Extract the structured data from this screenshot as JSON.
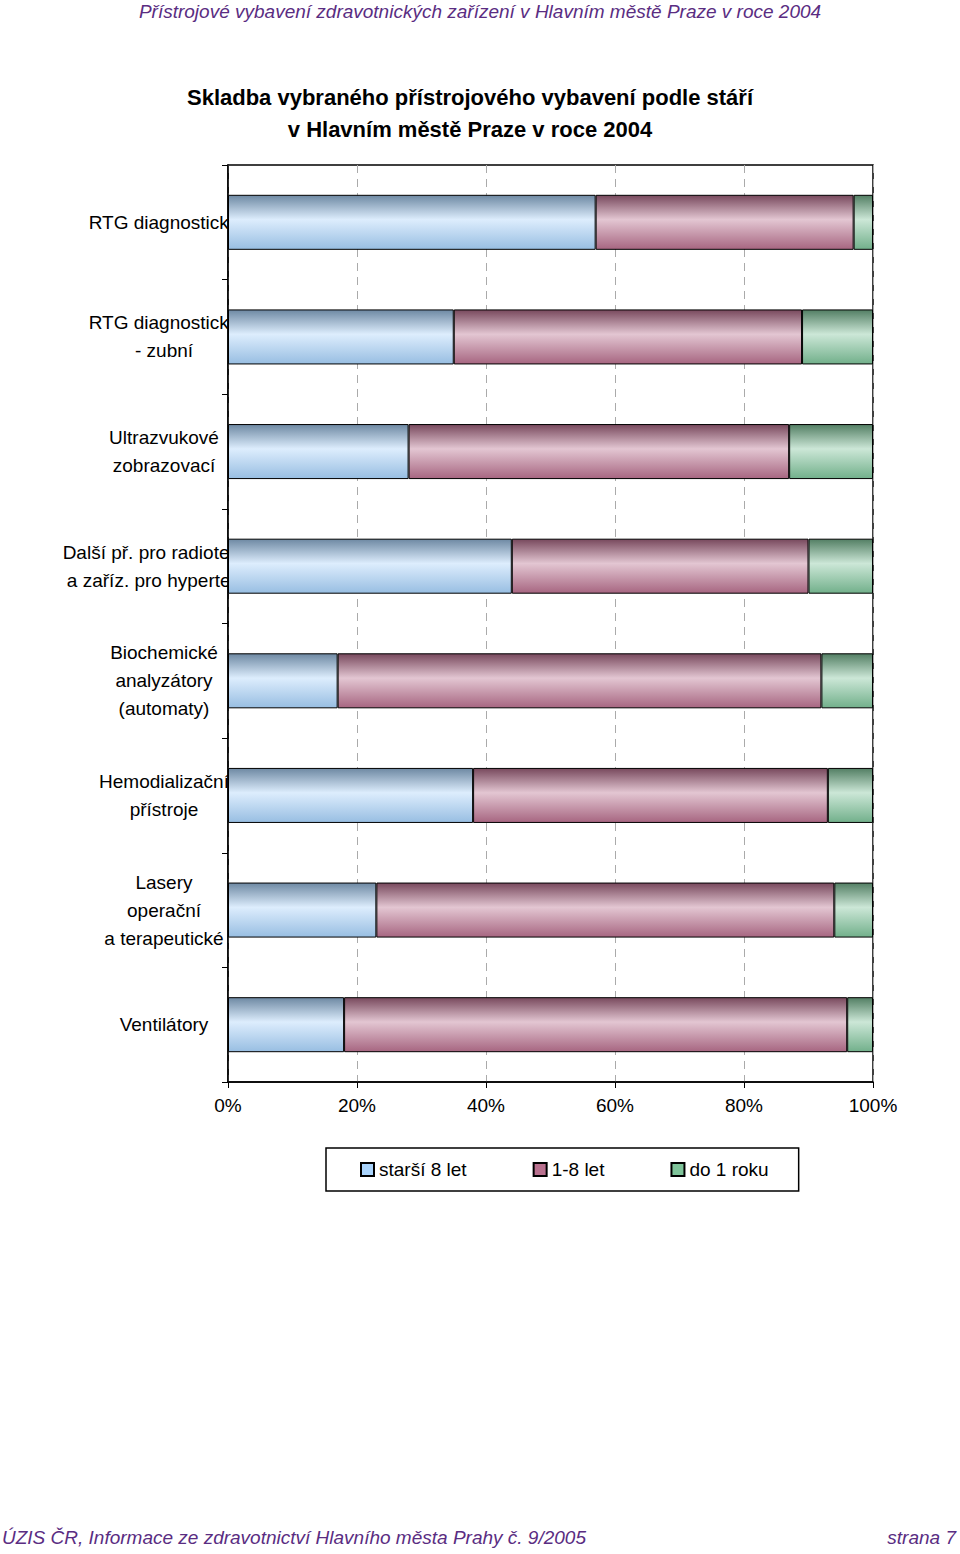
{
  "page_header": "Přístrojové vybavení zdravotnických zařízení v Hlavním městě Praze v roce 2004",
  "page_footer": {
    "left": "ÚZIS ČR, Informace ze zdravotnictví Hlavního města Prahy č. 9/2005",
    "right": "strana 7"
  },
  "chart_data": {
    "type": "bar",
    "title": "Skladba vybraného přístrojového vybavení podle stáří\nv Hlavním městě Praze v roce 2004",
    "orientation": "horizontal",
    "stacked": true,
    "grid": true,
    "legend": "bottom",
    "categories": [
      "RTG diagnostické",
      "RTG diagnostické\n- zubní",
      "Ultrazvukové\nzobrazovací",
      "Další př. pro radioterapii\na zaříz. pro hypertermii",
      "Biochemické\nanalyzátory\n(automaty)",
      "Hemodializační\npřístroje",
      "Lasery\noperační\na terapeutické",
      "Ventilátory"
    ],
    "series": [
      {
        "name": "starší 8 let",
        "color": "#a9d3fb",
        "values": [
          57,
          35,
          28,
          44,
          17,
          38,
          23,
          18
        ]
      },
      {
        "name": "1-8 let",
        "color": "#b9718f",
        "values": [
          40,
          54,
          59,
          46,
          75,
          55,
          71,
          78
        ]
      },
      {
        "name": "do 1 roku",
        "color": "#7fc49a",
        "values": [
          3,
          11,
          13,
          10,
          8,
          7,
          6,
          4
        ]
      }
    ],
    "xlim": [
      0,
      100
    ],
    "xticks": [
      {
        "value": 0,
        "label": "0%"
      },
      {
        "value": 20,
        "label": "20%"
      },
      {
        "value": 40,
        "label": "40%"
      },
      {
        "value": 60,
        "label": "60%"
      },
      {
        "value": 80,
        "label": "80%"
      },
      {
        "value": 100,
        "label": "100%"
      }
    ]
  }
}
